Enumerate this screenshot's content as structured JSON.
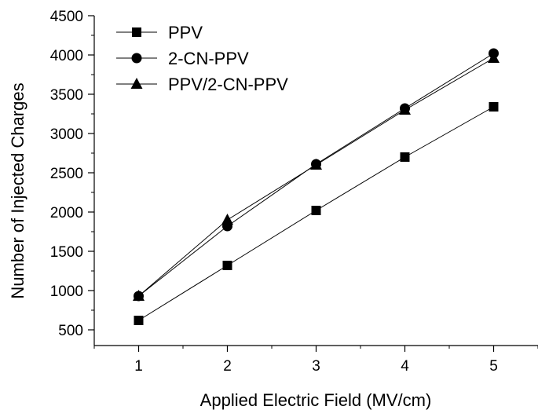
{
  "chart_data": {
    "type": "line",
    "title": "",
    "xlabel": "Applied Electric Field (MV/cm)",
    "ylabel": "Number of Injected Charges",
    "xlim": [
      0.5,
      5.5
    ],
    "ylim": [
      300,
      4500
    ],
    "xticks": [
      1,
      2,
      3,
      4,
      5
    ],
    "yticks": [
      500,
      1000,
      1500,
      2000,
      2500,
      3000,
      3500,
      4000,
      4500
    ],
    "grid": false,
    "legend_position": "top-left",
    "x": [
      1,
      2,
      3,
      4,
      5
    ],
    "series": [
      {
        "name": "PPV",
        "marker": "square",
        "values": [
          620,
          1320,
          2020,
          2700,
          3340
        ]
      },
      {
        "name": "2-CN-PPV",
        "marker": "circle",
        "values": [
          930,
          1820,
          2610,
          3320,
          4020
        ]
      },
      {
        "name": "PPV/2-CN-PPV",
        "marker": "triangle",
        "values": [
          930,
          1900,
          2600,
          3300,
          3960
        ]
      }
    ],
    "colors": {
      "line": "#000000",
      "marker": "#000000"
    }
  }
}
